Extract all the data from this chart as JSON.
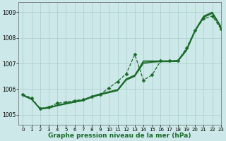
{
  "title": "Graphe pression niveau de la mer (hPa)",
  "bg_color": "#cce8e8",
  "grid_color": "#aacccc",
  "line_color": "#1a6b2a",
  "xlim": [
    -0.5,
    23
  ],
  "ylim": [
    1004.6,
    1009.4
  ],
  "yticks": [
    1005,
    1006,
    1007,
    1008,
    1009
  ],
  "xticks": [
    0,
    1,
    2,
    3,
    4,
    5,
    6,
    7,
    8,
    9,
    10,
    11,
    12,
    13,
    14,
    15,
    16,
    17,
    18,
    19,
    20,
    21,
    22,
    23
  ],
  "series": [
    {
      "x": [
        0,
        1,
        2,
        3,
        4,
        5,
        6,
        7,
        8,
        9,
        10,
        11,
        12,
        13,
        14,
        15,
        16,
        17,
        18,
        19,
        20,
        21,
        22,
        23
      ],
      "y": [
        1005.8,
        1005.65,
        1005.25,
        1005.3,
        1005.45,
        1005.5,
        1005.55,
        1005.6,
        1005.7,
        1005.8,
        1006.05,
        1006.3,
        1006.6,
        1007.35,
        1006.35,
        1006.55,
        1007.1,
        1007.1,
        1007.1,
        1007.6,
        1008.3,
        1008.75,
        1008.85,
        1008.35
      ],
      "linestyle": "--",
      "marker": "D",
      "markersize": 2.5,
      "linewidth": 0.9
    },
    {
      "x": [
        0,
        1,
        2,
        3,
        4,
        5,
        6,
        7,
        8,
        9,
        10,
        11,
        12,
        13,
        14,
        15,
        16,
        17,
        18,
        19,
        20,
        21,
        22,
        23
      ],
      "y": [
        1005.75,
        1005.6,
        1005.25,
        1005.28,
        1005.38,
        1005.45,
        1005.52,
        1005.58,
        1005.72,
        1005.82,
        1005.9,
        1005.98,
        1006.4,
        1006.55,
        1007.1,
        1007.1,
        1007.1,
        1007.1,
        1007.12,
        1007.55,
        1008.3,
        1008.85,
        1009.0,
        1008.45
      ],
      "linestyle": "-",
      "marker": null,
      "markersize": 0,
      "linewidth": 1.0
    },
    {
      "x": [
        0,
        1,
        2,
        3,
        4,
        5,
        6,
        7,
        8,
        9,
        10,
        11,
        12,
        13,
        14,
        15,
        16,
        17,
        18,
        19,
        20,
        21,
        22,
        23
      ],
      "y": [
        1005.78,
        1005.62,
        1005.23,
        1005.27,
        1005.36,
        1005.43,
        1005.5,
        1005.57,
        1005.7,
        1005.8,
        1005.88,
        1005.96,
        1006.38,
        1006.52,
        1007.05,
        1007.07,
        1007.08,
        1007.08,
        1007.1,
        1007.52,
        1008.28,
        1008.82,
        1008.98,
        1008.42
      ],
      "linestyle": "-",
      "marker": null,
      "markersize": 0,
      "linewidth": 0.9
    },
    {
      "x": [
        0,
        1,
        2,
        3,
        4,
        5,
        6,
        7,
        8,
        9,
        10,
        11,
        12,
        13,
        14,
        15,
        16,
        17,
        18,
        19,
        20,
        21,
        22,
        23
      ],
      "y": [
        1005.76,
        1005.61,
        1005.22,
        1005.26,
        1005.35,
        1005.42,
        1005.49,
        1005.55,
        1005.68,
        1005.78,
        1005.86,
        1005.94,
        1006.35,
        1006.5,
        1007.0,
        1007.05,
        1007.07,
        1007.07,
        1007.08,
        1007.5,
        1008.25,
        1008.8,
        1008.95,
        1008.38
      ],
      "linestyle": "-",
      "marker": null,
      "markersize": 0,
      "linewidth": 0.9
    }
  ],
  "figsize": [
    3.2,
    2.0
  ],
  "dpi": 100
}
